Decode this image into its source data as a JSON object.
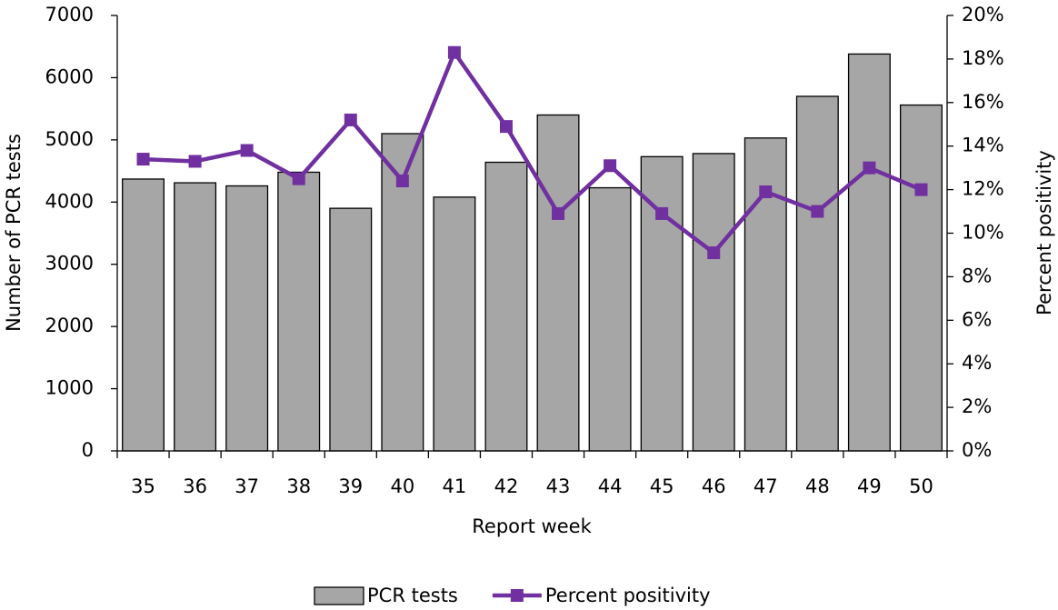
{
  "chart_data": {
    "type": "bar",
    "x_label": "Report week",
    "y_label": "Number of PCR tests",
    "y2_label": "Percent positivity",
    "categories": [
      "35",
      "36",
      "37",
      "38",
      "39",
      "40",
      "41",
      "42",
      "43",
      "44",
      "45",
      "46",
      "47",
      "48",
      "49",
      "50"
    ],
    "series": [
      {
        "name": "PCR tests",
        "type": "bar",
        "color": "#a6a6a6",
        "values": [
          4370,
          4310,
          4260,
          4480,
          3900,
          5100,
          4080,
          4640,
          5400,
          4230,
          4730,
          4780,
          5030,
          5700,
          6380,
          5560
        ]
      },
      {
        "name": "Percent positivity",
        "type": "line",
        "axis": "y2",
        "color": "#7030a0",
        "values": [
          13.4,
          13.3,
          13.8,
          12.5,
          15.2,
          12.4,
          18.3,
          14.9,
          10.9,
          13.1,
          10.9,
          9.1,
          11.9,
          11.0,
          13.0,
          12.0
        ]
      }
    ],
    "ylim": [
      0,
      7000
    ],
    "yticks": [
      0,
      1000,
      2000,
      3000,
      4000,
      5000,
      6000,
      7000
    ],
    "y2lim": [
      0,
      20
    ],
    "y2ticks": [
      {
        "value": 0,
        "label": "0%"
      },
      {
        "value": 2,
        "label": "2%"
      },
      {
        "value": 4,
        "label": "4%"
      },
      {
        "value": 6,
        "label": "6%"
      },
      {
        "value": 8,
        "label": "8%"
      },
      {
        "value": 10,
        "label": "10%"
      },
      {
        "value": 12,
        "label": "12%"
      },
      {
        "value": 14,
        "label": "14%"
      },
      {
        "value": 16,
        "label": "16%"
      },
      {
        "value": 18,
        "label": "18%"
      },
      {
        "value": 20,
        "label": "20%"
      }
    ],
    "grid": false,
    "legend": "bottom"
  }
}
